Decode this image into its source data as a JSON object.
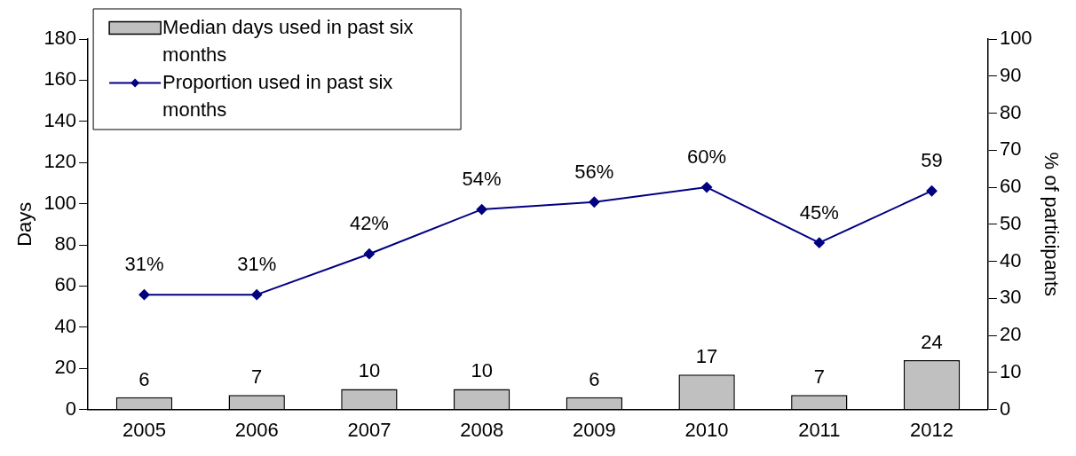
{
  "chart_data": {
    "type": "bar",
    "categories": [
      "2005",
      "2006",
      "2007",
      "2008",
      "2009",
      "2010",
      "2011",
      "2012"
    ],
    "ylabel": "Days",
    "y2label": "% of participants",
    "ylim": [
      0,
      180
    ],
    "yticks": [
      0,
      20,
      40,
      60,
      80,
      100,
      120,
      140,
      160,
      180
    ],
    "y2lim": [
      0,
      100
    ],
    "y2ticks": [
      0,
      10,
      20,
      30,
      40,
      50,
      60,
      70,
      80,
      90,
      100
    ],
    "grid": false,
    "legend": "top left",
    "marker": "diamond",
    "line_style": "solid",
    "series": [
      {
        "name": "Median days used in past six months",
        "color": "#c0c0c0",
        "values": [
          6,
          7,
          10,
          10,
          6,
          17,
          7,
          24
        ],
        "value_labels": [
          "6",
          "7",
          "10",
          "10",
          "6",
          "17",
          "7",
          "24"
        ]
      },
      {
        "name": "Proportion used in past six months",
        "type": "line",
        "axis": "y2",
        "color": "#000080",
        "values": [
          31,
          31,
          42,
          54,
          56,
          60,
          45,
          59
        ],
        "value_labels": [
          "31%",
          "31%",
          "42%",
          "54%",
          "56%",
          "60%",
          "45%",
          "59"
        ]
      }
    ]
  }
}
